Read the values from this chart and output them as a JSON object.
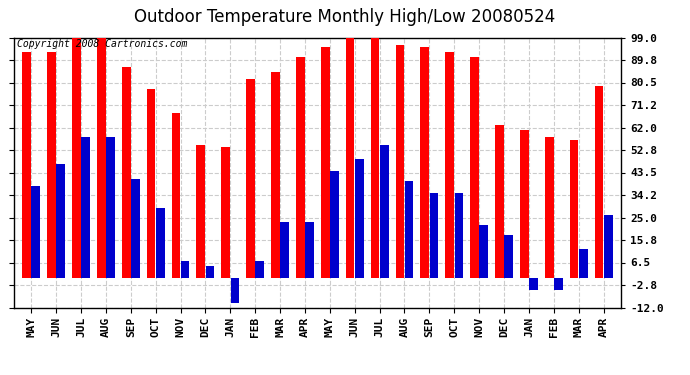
{
  "title": "Outdoor Temperature Monthly High/Low 20080524",
  "copyright": "Copyright 2008 Cartronics.com",
  "months": [
    "MAY",
    "JUN",
    "JUL",
    "AUG",
    "SEP",
    "OCT",
    "NOV",
    "DEC",
    "JAN",
    "FEB",
    "MAR",
    "APR",
    "MAY",
    "JUN",
    "JUL",
    "AUG",
    "SEP",
    "OCT",
    "NOV",
    "DEC",
    "JAN",
    "FEB",
    "MAR",
    "APR"
  ],
  "highs": [
    93,
    93,
    101,
    100,
    87,
    78,
    68,
    55,
    54,
    82,
    85,
    91,
    95,
    99,
    103,
    96,
    95,
    93,
    91,
    63,
    61,
    58,
    57,
    79
  ],
  "lows": [
    38,
    47,
    58,
    58,
    41,
    29,
    7,
    5,
    -10,
    7,
    23,
    23,
    44,
    49,
    55,
    40,
    35,
    35,
    22,
    18,
    -5,
    -5,
    12,
    26
  ],
  "high_color": "#FF0000",
  "low_color": "#0000CC",
  "bg_color": "#FFFFFF",
  "grid_color": "#CCCCCC",
  "yticks": [
    -12.0,
    -2.8,
    6.5,
    15.8,
    25.0,
    34.2,
    43.5,
    52.8,
    62.0,
    71.2,
    80.5,
    89.8,
    99.0
  ],
  "ymin": -12.0,
  "ymax": 99.0,
  "title_fontsize": 12,
  "copyright_fontsize": 7,
  "tick_fontsize": 8,
  "bar_width": 0.35,
  "bar_gap": 0.02
}
